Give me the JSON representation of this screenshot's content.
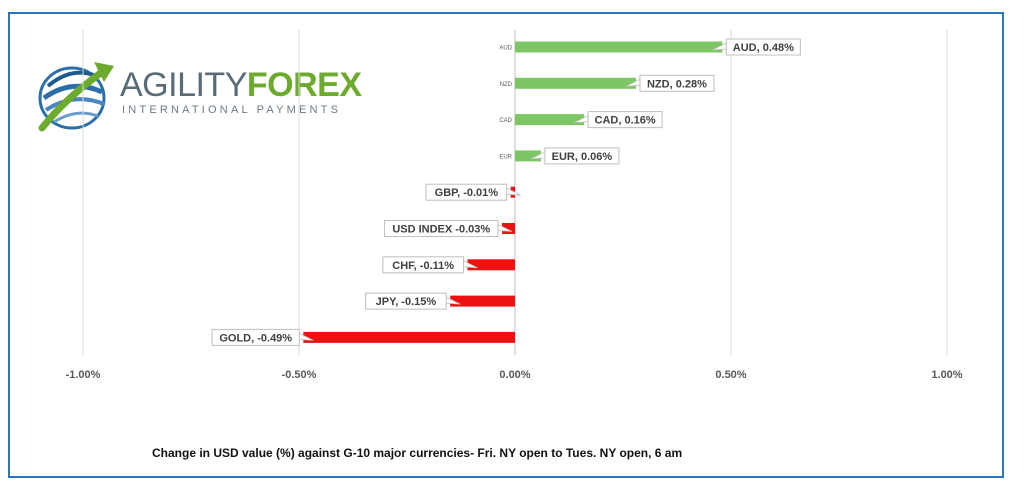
{
  "logo": {
    "brand_part1": "AGILITY",
    "brand_part2": "FOREX",
    "tagline": "INTERNATIONAL PAYMENTS",
    "colors": {
      "grey": "#5a6b78",
      "green": "#6cab2e",
      "blue": "#2b6ea8"
    }
  },
  "caption": "Change in  USD value (%)  against  G-10 major currencies-  Fri. NY open to Tues. NY open, 6 am",
  "chart_data": {
    "type": "bar",
    "orientation": "horizontal",
    "categories": [
      "AUD",
      "NZD",
      "CAD",
      "EUR",
      "GBP",
      "USD INDEX",
      "CHF",
      "JPY",
      "GOLD"
    ],
    "values": [
      0.48,
      0.28,
      0.16,
      0.06,
      -0.01,
      -0.03,
      -0.11,
      -0.15,
      -0.49
    ],
    "data_labels": [
      "AUD, 0.48%",
      "NZD, 0.28%",
      "CAD, 0.16%",
      "EUR, 0.06%",
      "GBP, -0.01%",
      "USD INDEX -0.03%",
      "CHF, -0.11%",
      "JPY, -0.15%",
      "GOLD, -0.49%"
    ],
    "category_axis_labels": [
      "AUD",
      "NZD",
      "CAD",
      "EUR",
      "",
      "",
      "",
      "",
      ""
    ],
    "xlim": [
      -1.0,
      1.0
    ],
    "xticks": [
      -1.0,
      -0.5,
      0.0,
      0.5,
      1.0
    ],
    "xtick_labels": [
      "-1.00%",
      "-0.50%",
      "0.00%",
      "0.50%",
      "1.00%"
    ],
    "grid": "vertical",
    "colors": {
      "positive": "#7cc764",
      "negative": "#ee1111",
      "grid": "#d9d9d9",
      "frame": "#2e75b6"
    }
  }
}
